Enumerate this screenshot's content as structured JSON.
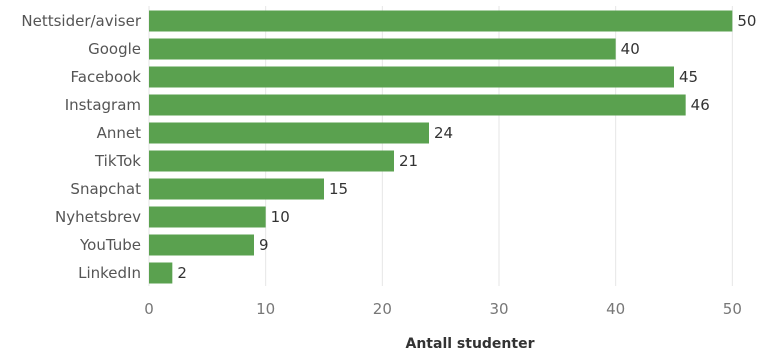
{
  "chart_data": {
    "type": "bar",
    "orientation": "horizontal",
    "categories": [
      "Nettsider/aviser",
      "Google",
      "Facebook",
      "Instagram",
      "Annet",
      "TikTok",
      "Snapchat",
      "Nyhetsbrev",
      "YouTube",
      "LinkedIn"
    ],
    "values": [
      50,
      40,
      45,
      46,
      24,
      21,
      15,
      10,
      9,
      2
    ],
    "xlabel": "Antall studenter",
    "ylabel": "",
    "xlim": [
      0,
      54
    ],
    "xticks": [
      0,
      10,
      20,
      30,
      40,
      50
    ],
    "grid": true,
    "bar_color": "#5aa14f"
  }
}
